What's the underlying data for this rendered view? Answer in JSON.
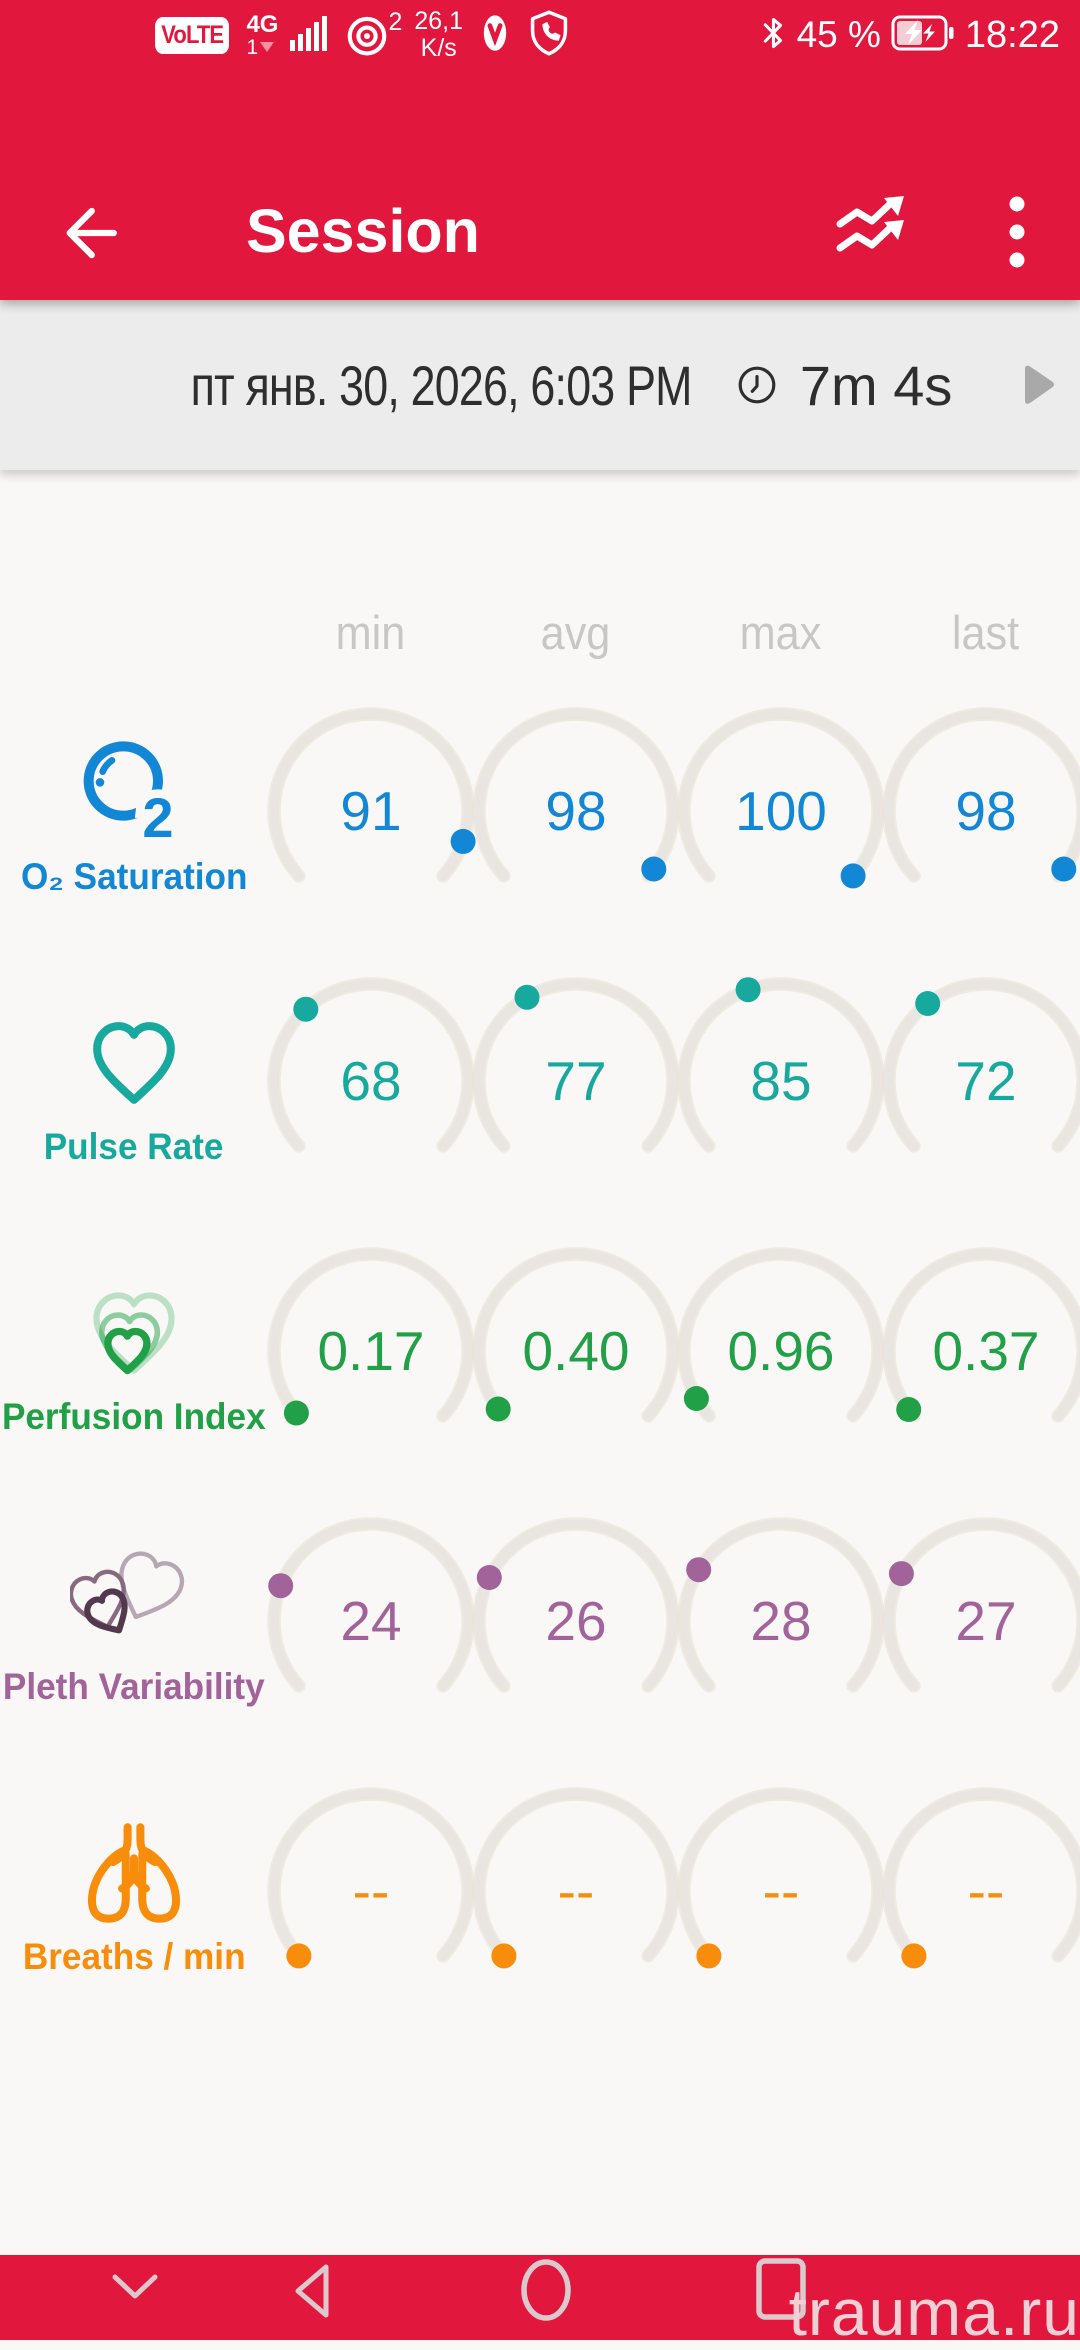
{
  "status_bar": {
    "volte_badge": "VoLTE",
    "network_type": "4G",
    "sim_number": "1",
    "hotspot_devices": "2",
    "net_speed": "26,1",
    "net_speed_unit": "K/s",
    "battery_percent": "45 %",
    "clock": "18:22"
  },
  "app_bar": {
    "title": "Session"
  },
  "session_bar": {
    "datetime": "пт янв. 30, 2026, 6:03 PM",
    "duration": "7m 4s"
  },
  "metrics_table": {
    "column_headers": [
      "min",
      "avg",
      "max",
      "last"
    ],
    "gauge": {
      "start_deg": -132,
      "sweep_deg": 264,
      "track_color": "#e9e6e2",
      "track_halo": "#eadfcd"
    },
    "rows": [
      {
        "label": "O₂ Saturation",
        "icon": "o2-bubble-icon",
        "color": "#1287d6",
        "values": [
          "91",
          "98",
          "100",
          "98"
        ],
        "dot_fractions": [
          0.91,
          0.98,
          1.0,
          0.98
        ]
      },
      {
        "label": "Pulse Rate",
        "icon": "heart-icon",
        "color": "#18a99e",
        "values": [
          "68",
          "77",
          "85",
          "72"
        ],
        "dot_fractions": [
          0.34,
          0.385,
          0.425,
          0.36
        ]
      },
      {
        "label": "Perfusion Index",
        "icon": "nested-hearts-icon",
        "color": "#21a047",
        "values": [
          "0.17",
          "0.40",
          "0.96",
          "0.37"
        ],
        "dot_fractions": [
          0.0085,
          0.02,
          0.048,
          0.0185
        ]
      },
      {
        "label": "Pleth Variability",
        "icon": "overlapping-hearts-icon",
        "color": "#a2639a",
        "values": [
          "24",
          "26",
          "28",
          "27"
        ],
        "dot_fractions": [
          0.24,
          0.26,
          0.28,
          0.27
        ]
      },
      {
        "label": "Breaths / min",
        "icon": "lungs-icon",
        "color": "#f78d0a",
        "values": [
          "--",
          "--",
          "--",
          "--"
        ],
        "dot_fractions": [
          0,
          0,
          0,
          0
        ]
      }
    ]
  },
  "nav_bar": {
    "watermark": "trauma.ru"
  },
  "theme": {
    "accent_red": "#e2173d",
    "date_bar_bg": "#ececec",
    "header_text_gray": "#c9c7c4",
    "date_text_color": "#2e2e2e"
  }
}
